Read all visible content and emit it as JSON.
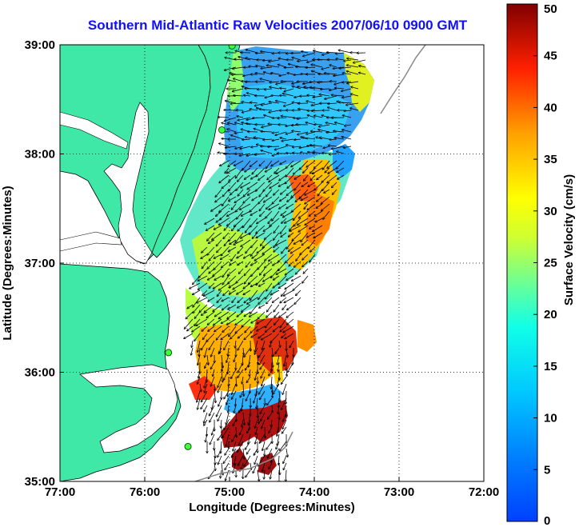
{
  "title": "Southern Mid-Atlantic Raw Velocities 2007/06/10 0900 GMT",
  "xlabel": "Longitude (Degrees:Minutes)",
  "ylabel": "Latitude (Degrees:Minutes)",
  "colorbar": {
    "label": "Surface Velocity (cm/s)",
    "min": 0,
    "max": 50,
    "ticks": [
      "0",
      "5",
      "10",
      "15",
      "20",
      "25",
      "30",
      "35",
      "40",
      "45",
      "50"
    ],
    "colormap": "jet"
  },
  "axes": {
    "lon_range": [
      -77,
      -72
    ],
    "lat_range": [
      35,
      39
    ],
    "x_ticks": [
      {
        "value": -77,
        "label": "77:00"
      },
      {
        "value": -76,
        "label": "76:00"
      },
      {
        "value": -75,
        "label": "75:00"
      },
      {
        "value": -74,
        "label": "74:00"
      },
      {
        "value": -73,
        "label": "73:00"
      },
      {
        "value": -72,
        "label": "72:00"
      }
    ],
    "y_ticks": [
      {
        "value": 35,
        "label": "35:00"
      },
      {
        "value": 36,
        "label": "36:00"
      },
      {
        "value": 37,
        "label": "37:00"
      },
      {
        "value": 38,
        "label": "38:00"
      },
      {
        "value": 39,
        "label": "39:00"
      }
    ],
    "grid": "dotted"
  },
  "colors": {
    "land": "#40e8a8",
    "water": "#ffffff",
    "title": "#1010ff"
  },
  "stations": [
    {
      "lon": -74.97,
      "lat": 38.99
    },
    {
      "lon": -75.09,
      "lat": 38.22
    },
    {
      "lon": -75.72,
      "lat": 36.18
    },
    {
      "lon": -75.49,
      "lat": 35.32
    }
  ]
}
